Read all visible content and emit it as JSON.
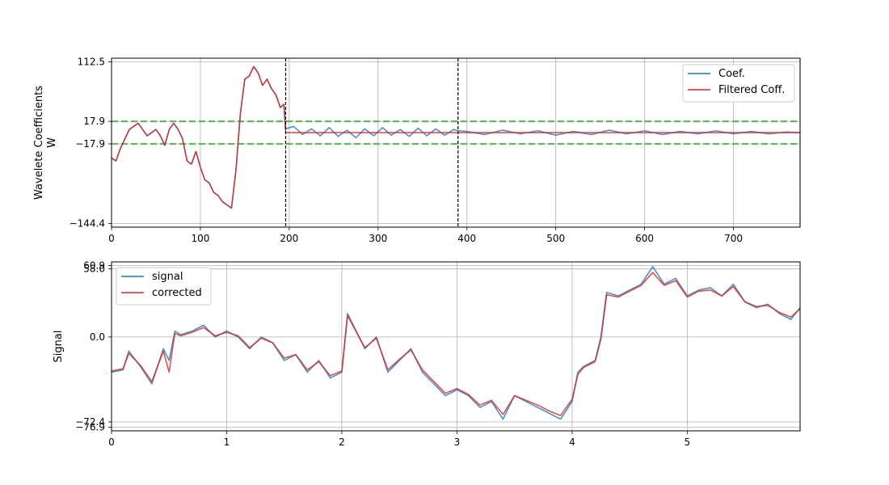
{
  "chart_data": [
    {
      "type": "line",
      "ylabel_line1": "Wavelete Coefficients",
      "ylabel_line2": "W",
      "xlim": [
        0,
        775
      ],
      "ylim": [
        -150.2,
        118.3
      ],
      "xticks": [
        0,
        100,
        200,
        300,
        400,
        500,
        600,
        700
      ],
      "yticks": [
        112.5,
        17.9,
        -17.9,
        -144.4
      ],
      "ytick_labels": [
        "112.5",
        "17.9",
        "−17.9",
        "−144.4"
      ],
      "thresholds": [
        17.9,
        -17.9
      ],
      "vlines": [
        196,
        390,
        775
      ],
      "legend": {
        "placement": "upper right"
      },
      "series": [
        {
          "name": "Coef.",
          "color": "#1f77b4",
          "x": [
            0,
            5,
            10,
            15,
            20,
            25,
            30,
            35,
            40,
            45,
            50,
            55,
            60,
            65,
            70,
            75,
            80,
            85,
            90,
            95,
            100,
            105,
            110,
            115,
            120,
            125,
            130,
            135,
            140,
            145,
            150,
            155,
            160,
            165,
            170,
            175,
            180,
            185,
            190,
            194,
            196,
            205,
            215,
            225,
            235,
            245,
            255,
            265,
            275,
            285,
            295,
            305,
            315,
            325,
            335,
            345,
            355,
            365,
            375,
            385,
            390,
            400,
            420,
            440,
            460,
            480,
            500,
            520,
            540,
            560,
            580,
            600,
            620,
            640,
            660,
            680,
            700,
            720,
            740,
            760,
            775
          ],
          "y": [
            -40,
            -45,
            -25,
            -10,
            5,
            10,
            15,
            5,
            -5,
            0,
            5,
            -5,
            -20,
            5,
            15,
            5,
            -10,
            -45,
            -50,
            -30,
            -55,
            -75,
            -80,
            -95,
            -100,
            -110,
            -115,
            -120,
            -60,
            30,
            85,
            90,
            105,
            95,
            75,
            85,
            70,
            60,
            40,
            45,
            6,
            10,
            -3,
            6,
            -5,
            8,
            -6,
            4,
            -8,
            6,
            -5,
            8,
            -4,
            5,
            -6,
            7,
            -5,
            6,
            -4,
            5,
            3,
            2,
            -3,
            4,
            -2,
            3,
            -4,
            2,
            -3,
            4,
            -2,
            3,
            -3,
            2,
            -2,
            3,
            -2,
            2,
            -2,
            1,
            0
          ]
        },
        {
          "name": "Filtered Coff.",
          "color": "#d62728",
          "x": [
            0,
            5,
            10,
            15,
            20,
            25,
            30,
            35,
            40,
            45,
            50,
            55,
            60,
            65,
            70,
            75,
            80,
            85,
            90,
            95,
            100,
            105,
            110,
            115,
            120,
            125,
            130,
            135,
            140,
            145,
            150,
            155,
            160,
            165,
            170,
            175,
            180,
            185,
            190,
            194,
            196,
            775
          ],
          "y": [
            -40,
            -45,
            -25,
            -10,
            5,
            10,
            15,
            5,
            -5,
            0,
            5,
            -5,
            -20,
            5,
            15,
            5,
            -10,
            -45,
            -50,
            -30,
            -55,
            -75,
            -80,
            -95,
            -100,
            -110,
            -115,
            -120,
            -60,
            30,
            85,
            90,
            105,
            95,
            75,
            85,
            70,
            60,
            40,
            45,
            0,
            0
          ]
        }
      ]
    },
    {
      "type": "line",
      "ylabel": "Signal",
      "xlim": [
        0,
        5.98
      ],
      "ylim": [
        -80,
        64
      ],
      "xticks": [
        0,
        1,
        2,
        3,
        4,
        5
      ],
      "yticks": [
        60.9,
        58.0,
        0.0,
        -72.4,
        -76.9
      ],
      "ytick_labels": [
        "60.9",
        "58.0",
        "0.0",
        "−72.4",
        "−76.9"
      ],
      "legend": {
        "placement": "upper left"
      },
      "series": [
        {
          "name": "signal",
          "color": "#1f77b4",
          "x": [
            0,
            0.1,
            0.15,
            0.25,
            0.35,
            0.45,
            0.5,
            0.55,
            0.6,
            0.7,
            0.8,
            0.9,
            1.0,
            1.1,
            1.2,
            1.3,
            1.4,
            1.5,
            1.6,
            1.7,
            1.8,
            1.9,
            2.0,
            2.05,
            2.1,
            2.2,
            2.3,
            2.4,
            2.5,
            2.6,
            2.7,
            2.8,
            2.9,
            3.0,
            3.1,
            3.2,
            3.3,
            3.4,
            3.5,
            3.6,
            3.7,
            3.8,
            3.9,
            4.0,
            4.05,
            4.1,
            4.2,
            4.25,
            4.3,
            4.4,
            4.5,
            4.6,
            4.7,
            4.8,
            4.9,
            5.0,
            5.1,
            5.2,
            5.3,
            5.4,
            5.5,
            5.6,
            5.7,
            5.8,
            5.9,
            5.98
          ],
          "y": [
            -30,
            -28,
            -12,
            -25,
            -40,
            -10,
            -20,
            5,
            2,
            5,
            10,
            0,
            5,
            0,
            -10,
            0,
            -5,
            -20,
            -15,
            -30,
            -20,
            -35,
            -30,
            20,
            10,
            -10,
            0,
            -30,
            -20,
            -10,
            -30,
            -40,
            -50,
            -45,
            -50,
            -60,
            -55,
            -70,
            -50,
            -55,
            -60,
            -65,
            -70,
            -55,
            -30,
            -25,
            -20,
            0,
            38,
            35,
            40,
            45,
            60,
            45,
            50,
            35,
            40,
            42,
            35,
            45,
            30,
            25,
            28,
            20,
            15,
            25
          ]
        },
        {
          "name": "corrected",
          "color": "#d62728",
          "x": [
            0,
            0.1,
            0.15,
            0.25,
            0.35,
            0.45,
            0.5,
            0.55,
            0.6,
            0.7,
            0.8,
            0.9,
            1.0,
            1.1,
            1.2,
            1.3,
            1.4,
            1.5,
            1.6,
            1.7,
            1.8,
            1.9,
            2.0,
            2.05,
            2.1,
            2.2,
            2.3,
            2.4,
            2.5,
            2.6,
            2.7,
            2.8,
            2.9,
            3.0,
            3.1,
            3.2,
            3.3,
            3.4,
            3.5,
            3.6,
            3.7,
            3.8,
            3.9,
            4.0,
            4.05,
            4.1,
            4.2,
            4.25,
            4.3,
            4.4,
            4.5,
            4.6,
            4.7,
            4.8,
            4.9,
            5.0,
            5.1,
            5.2,
            5.3,
            5.4,
            5.5,
            5.6,
            5.7,
            5.8,
            5.9,
            5.98
          ],
          "y": [
            -29,
            -27,
            -14,
            -24,
            -38,
            -12,
            -30,
            3,
            1,
            4,
            8,
            1,
            4,
            1,
            -9,
            -1,
            -5,
            -18,
            -15,
            -28,
            -21,
            -33,
            -29,
            18,
            9,
            -9,
            -1,
            -28,
            -19,
            -11,
            -28,
            -38,
            -48,
            -44,
            -49,
            -58,
            -54,
            -66,
            -50,
            -54,
            -58,
            -63,
            -67,
            -53,
            -32,
            -26,
            -21,
            -2,
            36,
            34,
            39,
            44,
            55,
            44,
            48,
            34,
            39,
            40,
            35,
            43,
            30,
            26,
            27,
            21,
            17,
            24
          ]
        }
      ]
    }
  ]
}
